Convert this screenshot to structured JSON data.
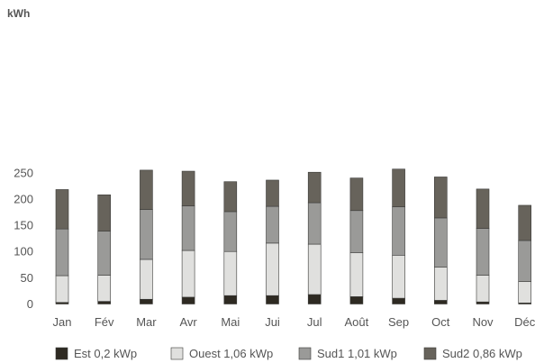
{
  "chart_data": {
    "type": "bar",
    "stacked": true,
    "ylabel": "kWh",
    "ylim": [
      0,
      260
    ],
    "yticks": [
      0,
      50,
      100,
      150,
      200,
      250
    ],
    "grid": false,
    "legend_position": "bottom",
    "categories": [
      "Jan",
      "Fév",
      "Mar",
      "Avr",
      "Mai",
      "Jui",
      "Jul",
      "Août",
      "Sep",
      "Oct",
      "Nov",
      "Déc"
    ],
    "series": [
      {
        "name": "Est 0,2 kWp",
        "color": "#2e2a22",
        "values": [
          3,
          5,
          9,
          13,
          16,
          16,
          18,
          14,
          11,
          7,
          4,
          2
        ]
      },
      {
        "name": "Ouest 1,06 kWp",
        "color": "#e0e0de",
        "values": [
          51,
          50,
          76,
          89,
          84,
          100,
          96,
          84,
          82,
          63,
          51,
          41
        ]
      },
      {
        "name": "Sud1 1,01 kWp",
        "color": "#9a9a98",
        "values": [
          89,
          84,
          95,
          85,
          76,
          70,
          79,
          80,
          92,
          94,
          89,
          78
        ]
      },
      {
        "name": "Sud2 0,86 kWp",
        "color": "#67635b",
        "values": [
          75,
          69,
          75,
          66,
          57,
          50,
          58,
          62,
          72,
          78,
          75,
          67
        ]
      }
    ]
  }
}
